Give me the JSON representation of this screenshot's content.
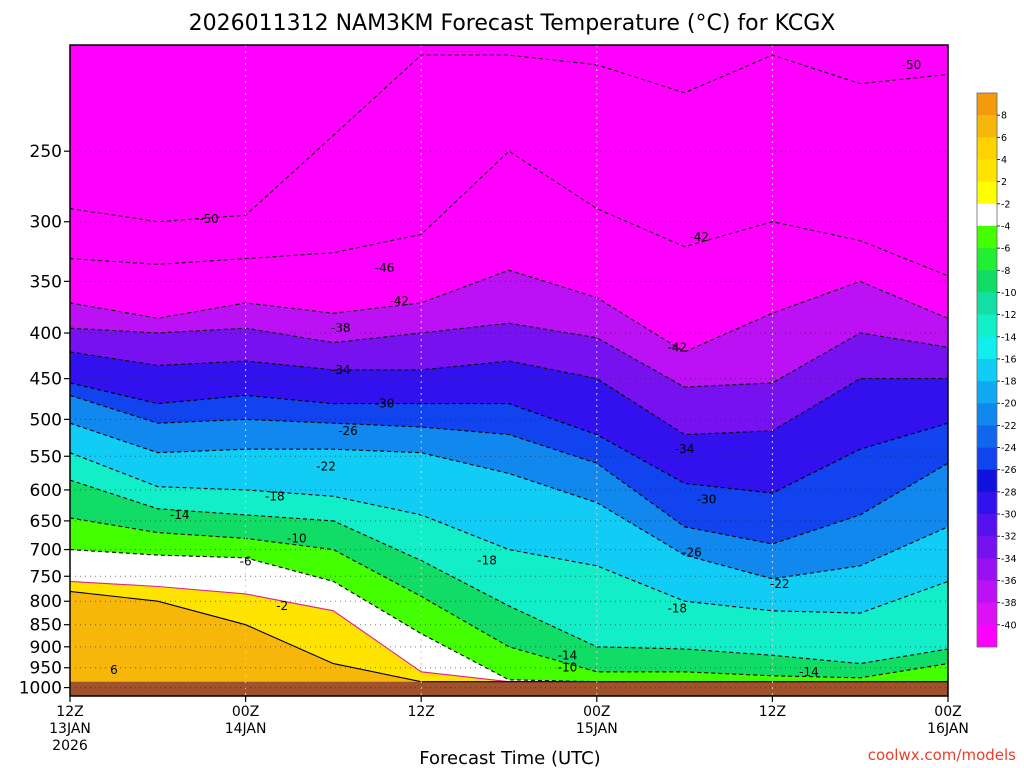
{
  "chart_data": {
    "type": "heatmap",
    "title": "2026011312 NAM3KM Forecast Temperature (°C) for KCGX",
    "xlabel": "Forecast Time (UTC)",
    "ylabel": "",
    "x_ticks": [
      {
        "lines": [
          "12Z",
          "13JAN",
          "2026"
        ],
        "hours": 0
      },
      {
        "lines": [
          "00Z",
          "14JAN"
        ],
        "hours": 12
      },
      {
        "lines": [
          "12Z"
        ],
        "hours": 24
      },
      {
        "lines": [
          "00Z",
          "15JAN"
        ],
        "hours": 36
      },
      {
        "lines": [
          "12Z"
        ],
        "hours": 48
      },
      {
        "lines": [
          "00Z",
          "16JAN"
        ],
        "hours": 60
      }
    ],
    "xlim_hours": [
      0,
      60
    ],
    "y_ticks": [
      250,
      300,
      350,
      400,
      450,
      500,
      550,
      600,
      650,
      700,
      750,
      800,
      850,
      900,
      950,
      1000
    ],
    "ylim_hPa": [
      1022,
      190
    ],
    "y_scale": "log-pressure",
    "ground_hPa_top": 985,
    "grid": true,
    "colorbar": {
      "levels": [
        "8",
        "6",
        "4",
        "2",
        "-2",
        "-4",
        "-6",
        "-8",
        "-10",
        "-12",
        "-14",
        "-16",
        "-18",
        "-20",
        "-22",
        "-24",
        "-26",
        "-28",
        "-30",
        "-32",
        "-34",
        "-36",
        "-38",
        "-40"
      ],
      "colors": [
        "#f39b0c",
        "#f7b70a",
        "#ffd300",
        "#ffe400",
        "#ffff00",
        "#ffffff",
        "#44ff00",
        "#22ee33",
        "#11dd66",
        "#11e0a2",
        "#11eec8",
        "#11eeee",
        "#11ccf5",
        "#11aaf2",
        "#1188ee",
        "#1166ee",
        "#1144ee",
        "#1111dd",
        "#3311ee",
        "#5511ee",
        "#7711f0",
        "#9911f2",
        "#bb11f4",
        "#dd11f6",
        "#ff00ff"
      ]
    },
    "isotherm_profiles": {
      "x_hours": [
        0,
        6,
        12,
        18,
        24,
        30,
        36,
        42,
        48,
        54,
        60
      ],
      "series": [
        {
          "name": "-50",
          "values": [
            290,
            300,
            295,
            240,
            195,
            195,
            200,
            215,
            195,
            210,
            205
          ]
        },
        {
          "name": "-46",
          "values": [
            330,
            335,
            330,
            325,
            310,
            250,
            290,
            320,
            300,
            315,
            345
          ]
        },
        {
          "name": "-42",
          "values": [
            370,
            385,
            370,
            380,
            370,
            340,
            365,
            420,
            380,
            350,
            385
          ]
        },
        {
          "name": "-38",
          "values": [
            395,
            400,
            395,
            410,
            400,
            390,
            405,
            460,
            455,
            400,
            415
          ]
        },
        {
          "name": "-34",
          "values": [
            420,
            435,
            430,
            440,
            440,
            430,
            450,
            520,
            515,
            450,
            450
          ]
        },
        {
          "name": "-30",
          "values": [
            455,
            480,
            470,
            480,
            480,
            480,
            520,
            590,
            605,
            540,
            505
          ]
        },
        {
          "name": "-26",
          "values": [
            470,
            505,
            500,
            505,
            510,
            520,
            560,
            660,
            690,
            640,
            560
          ]
        },
        {
          "name": "-22",
          "values": [
            505,
            545,
            540,
            540,
            545,
            575,
            620,
            710,
            755,
            730,
            660
          ]
        },
        {
          "name": "-18",
          "values": [
            545,
            595,
            600,
            610,
            640,
            700,
            730,
            800,
            820,
            825,
            760
          ]
        },
        {
          "name": "-14",
          "values": [
            585,
            630,
            640,
            650,
            720,
            810,
            900,
            905,
            920,
            940,
            905
          ]
        },
        {
          "name": "-10",
          "values": [
            645,
            670,
            680,
            700,
            790,
            900,
            960,
            960,
            970,
            975,
            940
          ]
        },
        {
          "name": "-6",
          "values": [
            700,
            710,
            715,
            760,
            870,
            980,
            985,
            985,
            985,
            985,
            985
          ]
        },
        {
          "name": "-2",
          "values": [
            760,
            770,
            785,
            820,
            960,
            985,
            985,
            985,
            985,
            985,
            985
          ]
        },
        {
          "name": "2",
          "values": [
            780,
            800,
            850,
            940,
            985,
            985,
            985,
            985,
            985,
            985,
            985
          ]
        }
      ]
    },
    "isotherm_labels": [
      {
        "text": "-50",
        "hours": 57.5,
        "hPa": 200
      },
      {
        "text": "-50",
        "hours": 9.5,
        "hPa": 298
      },
      {
        "text": "-46",
        "hours": 21.5,
        "hPa": 338
      },
      {
        "text": "-42",
        "hours": 22.5,
        "hPa": 368
      },
      {
        "text": "-42",
        "hours": 43,
        "hPa": 312
      },
      {
        "text": "-42",
        "hours": 41.5,
        "hPa": 415
      },
      {
        "text": "-38",
        "hours": 18.5,
        "hPa": 395
      },
      {
        "text": "-34",
        "hours": 18.5,
        "hPa": 440
      },
      {
        "text": "-34",
        "hours": 42,
        "hPa": 540
      },
      {
        "text": "-30",
        "hours": 21.5,
        "hPa": 480
      },
      {
        "text": "-30",
        "hours": 43.5,
        "hPa": 615
      },
      {
        "text": "-26",
        "hours": 19,
        "hPa": 515
      },
      {
        "text": "-26",
        "hours": 42.5,
        "hPa": 705
      },
      {
        "text": "-22",
        "hours": 17.5,
        "hPa": 565
      },
      {
        "text": "-22",
        "hours": 48.5,
        "hPa": 765
      },
      {
        "text": "-18",
        "hours": 14,
        "hPa": 610
      },
      {
        "text": "-18",
        "hours": 28.5,
        "hPa": 720
      },
      {
        "text": "-18",
        "hours": 41.5,
        "hPa": 815
      },
      {
        "text": "-14",
        "hours": 7.5,
        "hPa": 640
      },
      {
        "text": "-14",
        "hours": 34,
        "hPa": 920
      },
      {
        "text": "-14",
        "hours": 50.5,
        "hPa": 960
      },
      {
        "text": "-10",
        "hours": 15.5,
        "hPa": 680
      },
      {
        "text": "-10",
        "hours": 34,
        "hPa": 950
      },
      {
        "text": "-6",
        "hours": 12,
        "hPa": 722
      },
      {
        "text": "-2",
        "hours": 14.5,
        "hPa": 810
      },
      {
        "text": "6",
        "hours": 3,
        "hPa": 955
      }
    ]
  },
  "credit": "coolwx.com/models"
}
